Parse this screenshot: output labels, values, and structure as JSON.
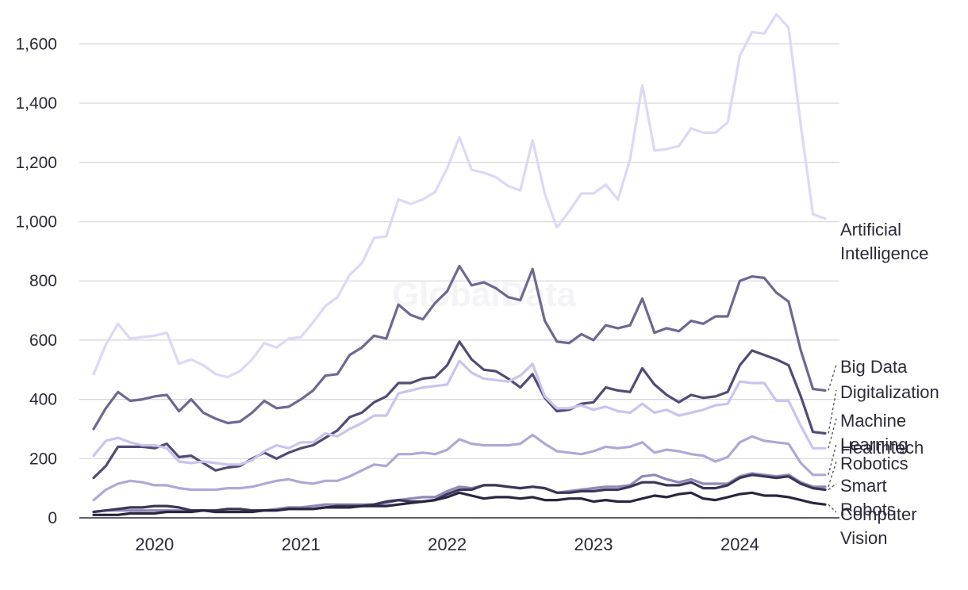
{
  "watermark": "GlobalData",
  "chart_data": {
    "type": "line",
    "title": "",
    "xlabel": "",
    "ylabel": "",
    "ylim": [
      0,
      1700
    ],
    "yticks": [
      0,
      200,
      400,
      600,
      800,
      1000,
      1200,
      1400,
      1600
    ],
    "ytick_labels": [
      "0",
      "200",
      "400",
      "600",
      "800",
      "1,000",
      "1,200",
      "1,400",
      "1,600"
    ],
    "x_start": "2019-09",
    "x_end": "2024-09",
    "xtick_labels": [
      "2020",
      "2021",
      "2022",
      "2023",
      "2024"
    ],
    "xtick_positions": [
      "2020-02",
      "2021-02",
      "2022-02",
      "2023-02",
      "2024-02"
    ],
    "grid": true,
    "legend": "right-end labels",
    "series": [
      {
        "name": "Artificial Intelligence",
        "label_lines": [
          "Artificial",
          "Intelligence"
        ],
        "color": "#dcd8f6",
        "values": [
          485,
          585,
          655,
          605,
          610,
          615,
          625,
          520,
          535,
          515,
          485,
          475,
          495,
          535,
          590,
          575,
          605,
          610,
          660,
          715,
          745,
          820,
          860,
          945,
          950,
          1075,
          1060,
          1075,
          1100,
          1180,
          1285,
          1175,
          1165,
          1150,
          1120,
          1105,
          1275,
          1095,
          980,
          1035,
          1095,
          1095,
          1125,
          1075,
          1210,
          1460,
          1240,
          1245,
          1255,
          1315,
          1300,
          1300,
          1335,
          1560,
          1640,
          1635,
          1700,
          1655,
          1325,
          1025,
          1010
        ]
      },
      {
        "name": "Big Data",
        "label_lines": [
          "Big Data"
        ],
        "color": "#6e6891",
        "values": [
          300,
          370,
          425,
          395,
          400,
          410,
          415,
          360,
          400,
          355,
          335,
          320,
          325,
          355,
          395,
          370,
          375,
          400,
          430,
          480,
          485,
          550,
          575,
          615,
          605,
          720,
          685,
          670,
          725,
          765,
          850,
          785,
          795,
          775,
          745,
          735,
          840,
          665,
          595,
          590,
          620,
          600,
          650,
          640,
          650,
          740,
          625,
          640,
          630,
          665,
          655,
          680,
          680,
          800,
          815,
          810,
          760,
          730,
          565,
          435,
          430
        ]
      },
      {
        "name": "Digitalization",
        "label_lines": [
          "Digitalization"
        ],
        "color": "#524c75",
        "values": [
          135,
          175,
          240,
          240,
          240,
          235,
          250,
          205,
          210,
          185,
          160,
          170,
          175,
          200,
          220,
          200,
          220,
          235,
          245,
          270,
          295,
          340,
          355,
          390,
          410,
          455,
          455,
          470,
          475,
          515,
          595,
          535,
          500,
          495,
          470,
          440,
          485,
          405,
          360,
          365,
          385,
          390,
          440,
          430,
          425,
          505,
          450,
          415,
          390,
          415,
          405,
          410,
          425,
          515,
          565,
          550,
          535,
          515,
          410,
          290,
          285
        ]
      },
      {
        "name": "Machine Learning",
        "label_lines": [
          "Machine",
          "Learning"
        ],
        "color": "#c9c4ee",
        "values": [
          210,
          260,
          270,
          255,
          245,
          245,
          235,
          190,
          185,
          190,
          185,
          180,
          180,
          195,
          225,
          245,
          235,
          255,
          255,
          285,
          275,
          300,
          320,
          345,
          345,
          420,
          430,
          440,
          445,
          450,
          530,
          490,
          470,
          465,
          460,
          480,
          520,
          410,
          370,
          370,
          380,
          365,
          375,
          360,
          355,
          385,
          355,
          365,
          345,
          355,
          365,
          380,
          385,
          460,
          455,
          455,
          395,
          395,
          310,
          235,
          235
        ]
      },
      {
        "name": "Healthtech",
        "label_lines": [
          "Healthtech"
        ],
        "color": "#aea8d8",
        "values": [
          60,
          95,
          115,
          125,
          120,
          110,
          110,
          100,
          95,
          95,
          95,
          100,
          100,
          105,
          115,
          125,
          130,
          120,
          115,
          125,
          125,
          140,
          160,
          180,
          175,
          215,
          215,
          220,
          215,
          230,
          265,
          250,
          245,
          245,
          245,
          250,
          280,
          250,
          225,
          220,
          215,
          225,
          240,
          235,
          240,
          255,
          220,
          230,
          225,
          215,
          210,
          190,
          205,
          255,
          275,
          260,
          255,
          250,
          185,
          145,
          145
        ]
      },
      {
        "name": "Robotics",
        "label_lines": [
          "Robotics"
        ],
        "color": "#8f89b9",
        "values": [
          20,
          25,
          25,
          25,
          25,
          25,
          25,
          25,
          25,
          25,
          20,
          20,
          20,
          25,
          25,
          30,
          35,
          35,
          40,
          45,
          45,
          45,
          45,
          45,
          50,
          60,
          65,
          70,
          70,
          90,
          105,
          100,
          110,
          110,
          105,
          100,
          105,
          100,
          85,
          90,
          95,
          100,
          105,
          105,
          110,
          140,
          145,
          130,
          120,
          130,
          115,
          115,
          115,
          140,
          150,
          145,
          140,
          145,
          120,
          105,
          105
        ]
      },
      {
        "name": "Smart Robots",
        "label_lines": [
          "Smart",
          "Robots"
        ],
        "color": "#3a3656",
        "values": [
          20,
          25,
          30,
          35,
          35,
          40,
          40,
          35,
          25,
          25,
          25,
          30,
          30,
          25,
          25,
          25,
          30,
          30,
          30,
          35,
          40,
          40,
          40,
          45,
          55,
          60,
          55,
          55,
          60,
          80,
          95,
          95,
          110,
          110,
          105,
          100,
          105,
          100,
          85,
          85,
          90,
          90,
          95,
          95,
          105,
          120,
          120,
          110,
          110,
          120,
          100,
          100,
          110,
          135,
          145,
          140,
          135,
          140,
          115,
          100,
          95
        ]
      },
      {
        "name": "Computer Vision",
        "label_lines": [
          "Computer",
          "Vision"
        ],
        "color": "#2a2640",
        "values": [
          10,
          10,
          10,
          15,
          15,
          15,
          20,
          20,
          20,
          25,
          20,
          20,
          20,
          20,
          25,
          25,
          30,
          30,
          30,
          35,
          35,
          35,
          40,
          40,
          40,
          45,
          50,
          55,
          60,
          70,
          85,
          75,
          65,
          70,
          70,
          65,
          70,
          60,
          60,
          65,
          65,
          55,
          60,
          55,
          55,
          65,
          75,
          70,
          80,
          85,
          65,
          60,
          70,
          80,
          85,
          75,
          75,
          70,
          60,
          50,
          45
        ]
      }
    ]
  }
}
